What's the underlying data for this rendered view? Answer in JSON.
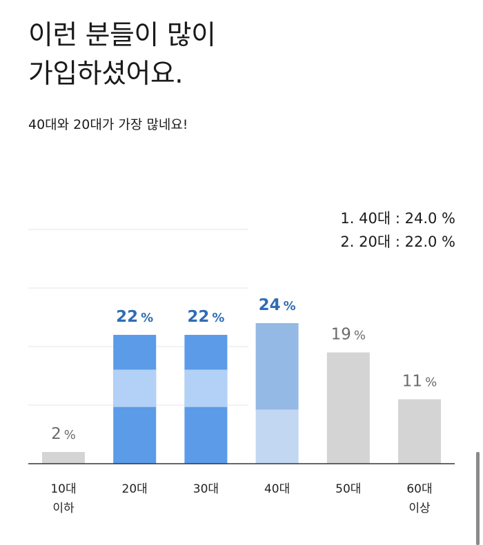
{
  "header": {
    "title_line1": "이런 분들이 많이",
    "title_line2": "가입하셨어요.",
    "subtitle": "40대와 20대가 가장 많네요!"
  },
  "ranking": [
    {
      "rank": "1.",
      "label": "40대",
      "value": "24.0 %"
    },
    {
      "rank": "2.",
      "label": "20대",
      "value": "22.0 %"
    }
  ],
  "chart_data": {
    "type": "bar",
    "categories": [
      [
        "10대",
        "이하"
      ],
      [
        "20대"
      ],
      [
        "30대"
      ],
      [
        "40대"
      ],
      [
        "50대"
      ],
      [
        "60대",
        "이상"
      ]
    ],
    "values": [
      2,
      22,
      22,
      24,
      19,
      11
    ],
    "value_labels": [
      "2",
      "22",
      "22",
      "24",
      "19",
      "11"
    ],
    "unit": "%",
    "highlighted": [
      false,
      true,
      true,
      true,
      false,
      false
    ],
    "ylim": [
      0,
      40
    ],
    "grid": true,
    "colors": {
      "default": "#d4d4d4",
      "highlight_20s": "#5b9be8",
      "highlight_band": "#b3d1f6",
      "highlight_40s_top": "#94b9e4",
      "highlight_40s_bottom": "#c2d7f1",
      "label_highlight": "#2f6db5",
      "label_default": "#6b6b6b",
      "grid": "#e6e6e6",
      "axis": "#333333"
    }
  }
}
